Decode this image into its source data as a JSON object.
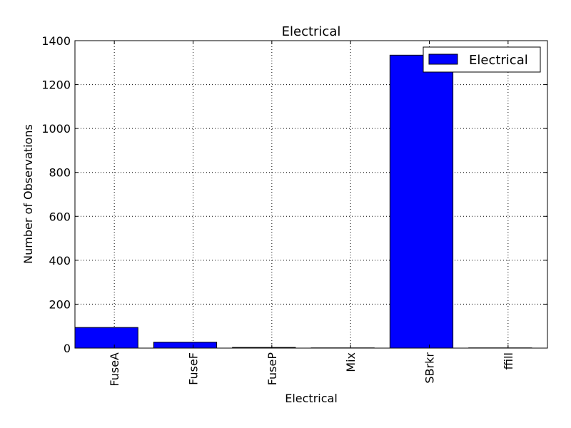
{
  "chart_data": {
    "type": "bar",
    "title": "Electrical",
    "xlabel": "Electrical",
    "ylabel": "Number of Observations",
    "categories": [
      "FuseA",
      "FuseF",
      "FuseP",
      "Mix",
      "SBrkr",
      "ffill"
    ],
    "series": [
      {
        "name": "Electrical",
        "values": [
          94,
          27,
          3,
          1,
          1334,
          1
        ],
        "color": "#0000ff"
      }
    ],
    "ylim": [
      0,
      1400
    ],
    "yticks": [
      0,
      200,
      400,
      600,
      800,
      1000,
      1200,
      1400
    ],
    "grid": true,
    "legend_position": "top-right",
    "x_tick_rotation": "vertical"
  }
}
